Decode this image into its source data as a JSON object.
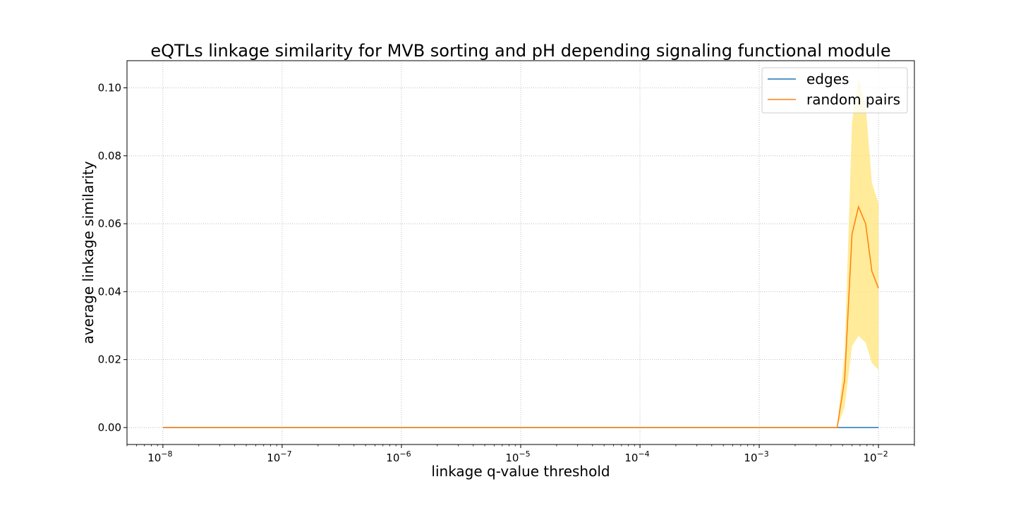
{
  "chart_data": {
    "type": "line",
    "title": "eQTLs linkage similarity for MVB sorting and pH depending signaling functional module",
    "xlabel": "linkage q-value threshold",
    "ylabel": "average linkage similarity",
    "xscale": "log",
    "xlim": [
      5e-09,
      0.02
    ],
    "ylim": [
      -0.005,
      0.108
    ],
    "xticks": [
      1e-08,
      1e-07,
      1e-06,
      1e-05,
      0.0001,
      0.001,
      0.01
    ],
    "xtick_exponents": [
      "−8",
      "−7",
      "−6",
      "−5",
      "−4",
      "−3",
      "−2"
    ],
    "yticks": [
      0.0,
      0.02,
      0.04,
      0.06,
      0.08,
      0.1
    ],
    "ytick_labels": [
      "0.00",
      "0.02",
      "0.04",
      "0.06",
      "0.08",
      "0.10"
    ],
    "grid": true,
    "legend_position": "top-right",
    "series": [
      {
        "name": "edges",
        "color": "#1f77b4",
        "x": [
          1e-08,
          0.0045,
          0.0052,
          0.006,
          0.0068,
          0.0078,
          0.0088,
          0.01
        ],
        "y": [
          0,
          0,
          0,
          0,
          0,
          0,
          0,
          0
        ]
      },
      {
        "name": "random pairs",
        "color": "#ff7f0e",
        "x": [
          1e-08,
          0.0045,
          0.0052,
          0.006,
          0.0068,
          0.0078,
          0.0088,
          0.01
        ],
        "y": [
          0,
          0,
          0.014,
          0.057,
          0.065,
          0.06,
          0.046,
          0.041
        ]
      }
    ],
    "band": {
      "color": "#ffe680",
      "x": [
        1e-08,
        0.0045,
        0.0052,
        0.006,
        0.0068,
        0.0078,
        0.0088,
        0.01
      ],
      "lower": [
        0,
        0,
        0.006,
        0.024,
        0.027,
        0.025,
        0.019,
        0.017
      ],
      "upper": [
        0,
        0,
        0.022,
        0.09,
        0.103,
        0.095,
        0.072,
        0.066
      ]
    }
  }
}
